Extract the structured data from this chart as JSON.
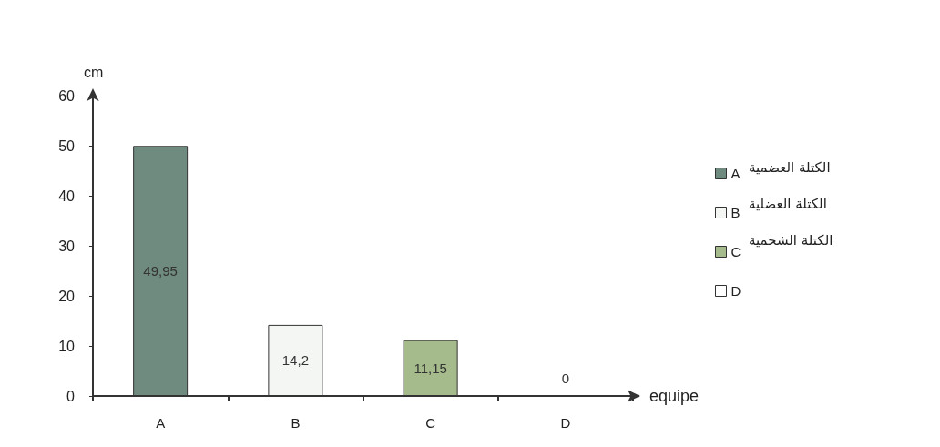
{
  "chart_data": {
    "type": "bar",
    "xlabel": "equipe",
    "ylabel": "cm",
    "categories": [
      "A",
      "B",
      "C",
      "D"
    ],
    "series": [
      {
        "name": "A",
        "color": "#6f8a7e",
        "values": [
          49.95,
          null,
          null,
          null
        ],
        "value_labels": [
          "49,95",
          null,
          null,
          null
        ]
      },
      {
        "name": "B",
        "color": "#f4f6f4",
        "values": [
          null,
          14.2,
          null,
          null
        ],
        "value_labels": [
          null,
          "14,2",
          null,
          null
        ]
      },
      {
        "name": "C",
        "color": "#a5bb8c",
        "values": [
          null,
          null,
          11.15,
          null
        ],
        "value_labels": [
          null,
          null,
          "11,15",
          null
        ]
      },
      {
        "name": "D",
        "color": "#ffffff",
        "values": [
          null,
          null,
          null,
          0
        ],
        "value_labels": [
          null,
          null,
          null,
          "0"
        ]
      }
    ],
    "ylim": [
      0,
      60
    ],
    "yticks": [
      0,
      10,
      20,
      30,
      40,
      50,
      60
    ],
    "grid": false,
    "legend": "right",
    "annotations": [
      "الكتلة العضمية",
      "الكتلة العضلية",
      "الكتلة الشحمية"
    ]
  }
}
